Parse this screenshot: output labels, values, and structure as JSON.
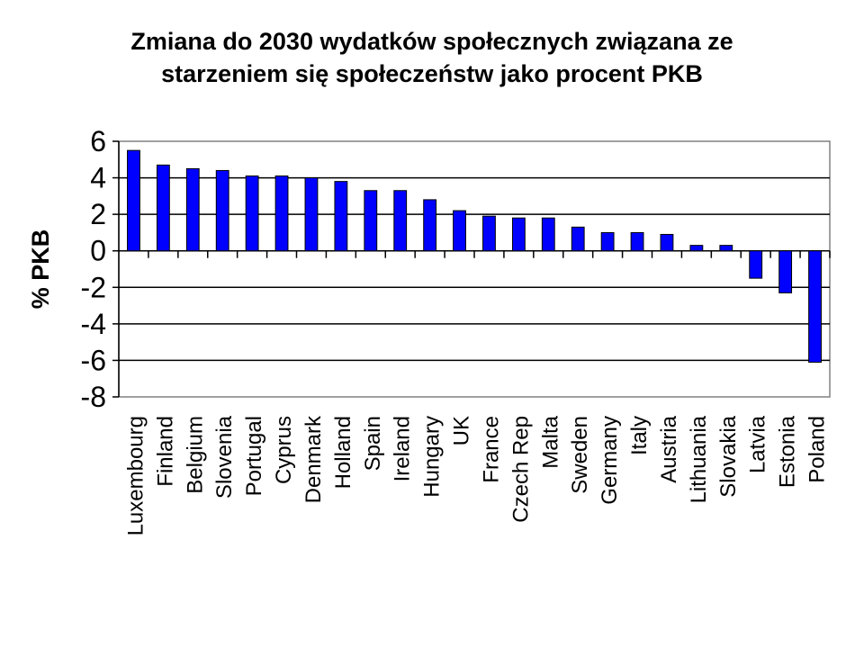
{
  "chart_data": {
    "type": "bar",
    "title_lines": [
      "Zmiana do 2030 wydatków społecznych związana ze",
      "starzeniem się społeczeństw jako procent PKB"
    ],
    "xlabel": "",
    "ylabel": "% PKB",
    "ylim": [
      -8,
      6
    ],
    "yticks": [
      6,
      4,
      2,
      0,
      -2,
      -4,
      -6,
      -8
    ],
    "grid": true,
    "bar_color": "#0000FF",
    "categories": [
      "Luxembourg",
      "Finland",
      "Belgium",
      "Slovenia",
      "Portugal",
      "Cyprus",
      "Denmark",
      "Holland",
      "Spain",
      "Ireland",
      "Hungary",
      "UK",
      "France",
      "Czech Rep",
      "Malta",
      "Sweden",
      "Germany",
      "Italy",
      "Austria",
      "Lithuania",
      "Slovakia",
      "Latvia",
      "Estonia",
      "Poland"
    ],
    "values": [
      5.5,
      4.7,
      4.5,
      4.4,
      4.1,
      4.1,
      4.0,
      3.8,
      3.3,
      3.3,
      2.8,
      2.2,
      1.9,
      1.8,
      1.8,
      1.3,
      1.0,
      1.0,
      0.9,
      0.3,
      0.3,
      -1.5,
      -2.3,
      -6.1
    ]
  }
}
